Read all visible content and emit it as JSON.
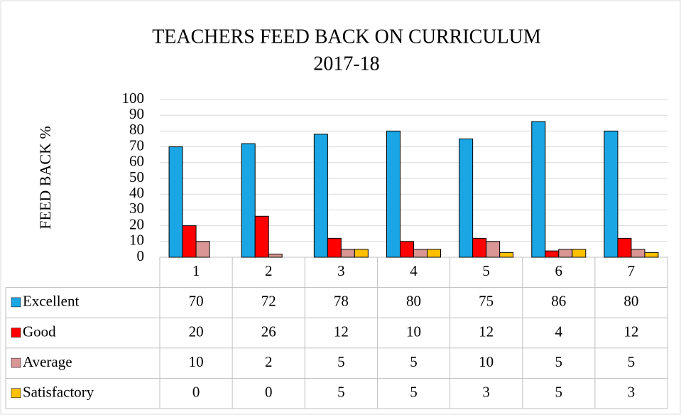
{
  "chart_data": {
    "type": "bar",
    "title": "TEACHERS FEED BACK ON CURRICULUM",
    "subtitle": "2017-18",
    "y_label": "FEED BACK %",
    "categories": [
      "1",
      "2",
      "3",
      "4",
      "5",
      "6",
      "7"
    ],
    "series": [
      {
        "name": "Excellent",
        "color": "#1aa6e4",
        "values": [
          70,
          72,
          78,
          80,
          75,
          86,
          80
        ]
      },
      {
        "name": "Good",
        "color": "#ff0000",
        "values": [
          20,
          26,
          12,
          10,
          12,
          4,
          12
        ]
      },
      {
        "name": "Average",
        "color": "#d99694",
        "values": [
          10,
          2,
          5,
          5,
          10,
          5,
          5
        ]
      },
      {
        "name": "Satisfactory",
        "color": "#ffc000",
        "values": [
          0,
          0,
          5,
          5,
          3,
          5,
          3
        ]
      }
    ],
    "ylim": [
      0,
      100
    ],
    "yticks": [
      0,
      10,
      20,
      30,
      40,
      50,
      60,
      70,
      80,
      90,
      100
    ],
    "grid": true
  }
}
